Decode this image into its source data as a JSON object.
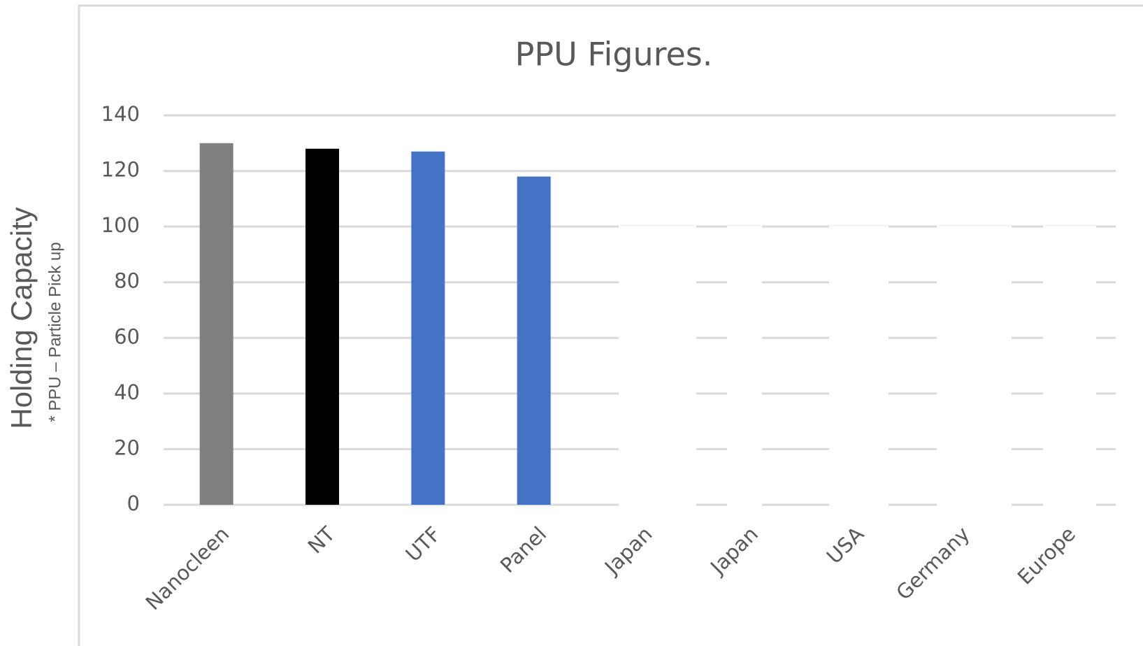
{
  "chart_data": {
    "type": "bar",
    "title": "PPU Figures.",
    "y_label": "Holding Capacity",
    "y_sublabel": "* PPU – Particle Pick up",
    "categories": [
      "Nanocleen",
      "NT",
      "UTF",
      "Panel",
      "Japan",
      "Japan",
      "USA",
      "Germany",
      "Europe"
    ],
    "values": [
      130,
      128,
      127,
      118,
      0,
      0,
      0,
      0,
      0
    ],
    "colors": [
      "#7f7f7f",
      "#000000",
      "#4472c4",
      "#4472c4",
      "#4472c4",
      "#4472c4",
      "#4472c4",
      "#4472c4",
      "#4472c4"
    ],
    "ylim": [
      0,
      140
    ],
    "yticks": [
      0,
      20,
      40,
      60,
      80,
      100,
      120,
      140
    ],
    "grid": true
  }
}
